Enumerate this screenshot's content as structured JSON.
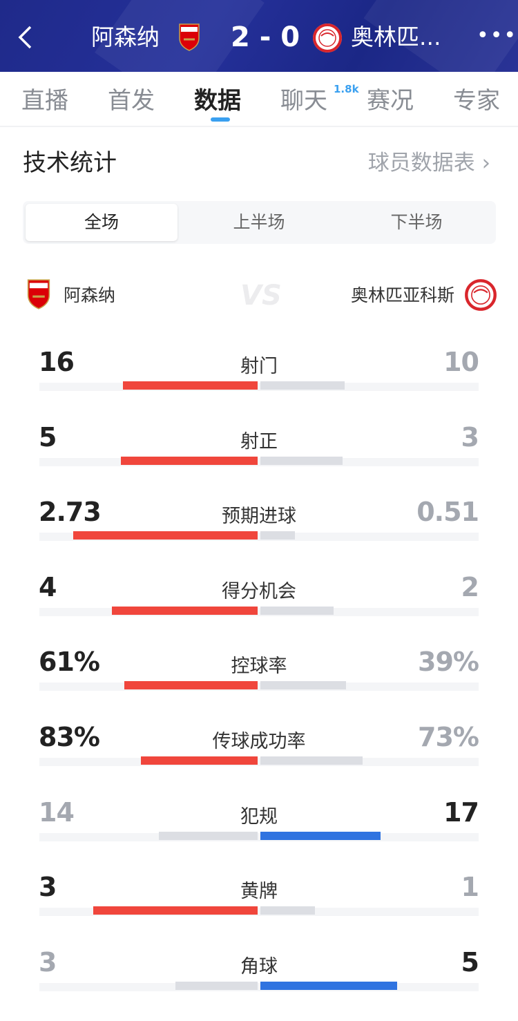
{
  "header": {
    "back_icon": "chevron-left-icon",
    "home_team": "阿森纳",
    "score": "2 - 0",
    "away_team": "奥林匹...",
    "more_icon": "ellipsis-icon",
    "background": "#1f2a8a"
  },
  "tabs": [
    {
      "label": "直播"
    },
    {
      "label": "首发"
    },
    {
      "label": "数据",
      "active": true
    },
    {
      "label": "聊天",
      "badge": "1.8k"
    },
    {
      "label": "赛况"
    },
    {
      "label": "专家"
    }
  ],
  "section": {
    "title": "技术统计",
    "link": "球员数据表",
    "link_icon": "chevron-right-icon"
  },
  "periods": [
    {
      "label": "全场",
      "active": true
    },
    {
      "label": "上半场"
    },
    {
      "label": "下半场"
    }
  ],
  "teams": {
    "home": "阿森纳",
    "away": "奥林匹亚科斯",
    "vs": "VS"
  },
  "colors": {
    "home": "#f0463c",
    "away": "#2f73e0",
    "loser": "#dcdee3",
    "track": "#f4f5f7",
    "winner_text": "#222222",
    "loser_text": "#a4a8b0",
    "accent": "#3aa0f0"
  },
  "stats": [
    {
      "label": "射门",
      "home": "16",
      "away": "10",
      "home_value": 16,
      "away_value": 10
    },
    {
      "label": "射正",
      "home": "5",
      "away": "3",
      "home_value": 5,
      "away_value": 3
    },
    {
      "label": "预期进球",
      "home": "2.73",
      "away": "0.51",
      "home_value": 2.73,
      "away_value": 0.51
    },
    {
      "label": "得分机会",
      "home": "4",
      "away": "2",
      "home_value": 4,
      "away_value": 2
    },
    {
      "label": "控球率",
      "home": "61%",
      "away": "39%",
      "home_value": 61,
      "away_value": 39
    },
    {
      "label": "传球成功率",
      "home": "83%",
      "away": "73%",
      "home_value": 83,
      "away_value": 73
    },
    {
      "label": "犯规",
      "home": "14",
      "away": "17",
      "home_value": 14,
      "away_value": 17
    },
    {
      "label": "黄牌",
      "home": "3",
      "away": "1",
      "home_value": 3,
      "away_value": 1
    },
    {
      "label": "角球",
      "home": "3",
      "away": "5",
      "home_value": 3,
      "away_value": 5
    }
  ]
}
